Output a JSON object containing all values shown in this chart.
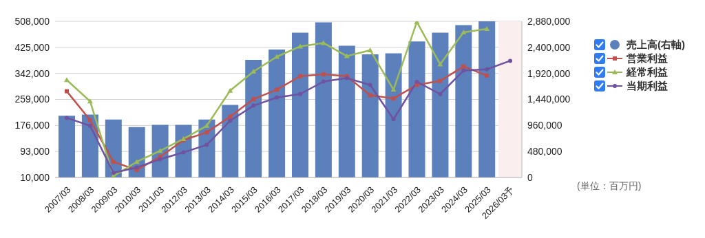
{
  "chart_data": {
    "type": "bar",
    "categories": [
      "2007/03",
      "2008/03",
      "2009/03",
      "2010/03",
      "2011/03",
      "2012/03",
      "2013/03",
      "2014/03",
      "2015/03",
      "2016/03",
      "2017/03",
      "2018/03",
      "2019/03",
      "2020/03",
      "2021/03",
      "2022/03",
      "2023/03",
      "2024/03",
      "2025/03",
      "2026/03予"
    ],
    "series": [
      {
        "name": "売上高(右軸)",
        "axis": "y2",
        "color": "#5b80bb",
        "values": [
          1140000,
          1160000,
          1070000,
          930000,
          970000,
          970000,
          1070000,
          1340000,
          2170000,
          2360000,
          2670000,
          2860000,
          2430000,
          2270000,
          2290000,
          2510000,
          2670000,
          2810000,
          2880000,
          null
        ]
      },
      {
        "name": "営業利益",
        "type": "line",
        "color": "#c0504d",
        "marker": "square",
        "values": [
          285000,
          193000,
          60000,
          34000,
          76000,
          129000,
          154000,
          204000,
          260000,
          290000,
          333000,
          339000,
          333000,
          272000,
          262000,
          305000,
          318000,
          364000,
          335000,
          null
        ]
      },
      {
        "name": "経常利益",
        "type": "line",
        "color": "#9bbb59",
        "marker": "triangle",
        "values": [
          321000,
          253000,
          14000,
          60000,
          95000,
          133000,
          175000,
          287000,
          348000,
          395000,
          428000,
          439000,
          397000,
          416000,
          290000,
          506000,
          371000,
          473000,
          484000,
          null
        ]
      },
      {
        "name": "当期利益",
        "type": "line",
        "color": "#6f52a0",
        "marker": "circle",
        "values": [
          200000,
          175000,
          25000,
          42000,
          68000,
          90000,
          114000,
          191000,
          239000,
          265000,
          276000,
          316000,
          327000,
          305000,
          196000,
          315000,
          276000,
          351000,
          355000,
          382000
        ]
      }
    ],
    "ylim": [
      10000,
      508000
    ],
    "yticks": [
      {
        "value": 10000,
        "label": "10,000"
      },
      {
        "value": 93000,
        "label": "93,000"
      },
      {
        "value": 176000,
        "label": "176,000"
      },
      {
        "value": 259000,
        "label": "259,000"
      },
      {
        "value": 342000,
        "label": "342,000"
      },
      {
        "value": 425000,
        "label": "425,000"
      },
      {
        "value": 508000,
        "label": "508,000"
      }
    ],
    "y2lim": [
      0,
      2880000
    ],
    "y2ticks": [
      0,
      {
        "value": 480000,
        "label": "480,000"
      },
      {
        "value": 960000,
        "label": "960,000"
      },
      {
        "value": 1440000,
        "label": "1,440,000"
      },
      {
        "value": 1920000,
        "label": "1,920,000"
      },
      {
        "value": 2400000,
        "label": "2,400,000"
      },
      {
        "value": 2880000,
        "label": "2,880,000"
      }
    ],
    "bands": [
      {
        "axis": "x",
        "from": "2026/03予",
        "to": "2026/03予",
        "color": "#fbeeee"
      }
    ],
    "grid": "y",
    "legend": "right",
    "annotations": [
      "(単位：百万円)"
    ]
  }
}
